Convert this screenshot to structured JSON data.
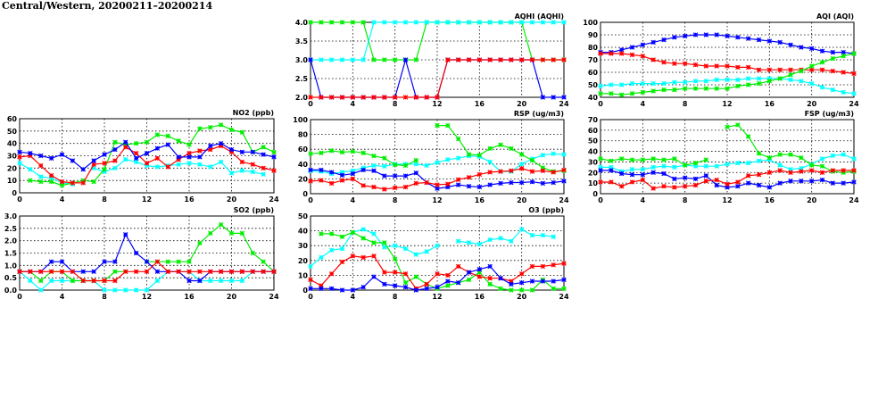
{
  "title": "Central/Western, 20200211–20200214",
  "colors": [
    "#0000ff",
    "#ff0000",
    "#00ee00",
    "#00ffff"
  ],
  "chart_data": [
    {
      "id": "aqhi",
      "type": "line",
      "title": "AQHI (AQHI)",
      "xlim": [
        0,
        24
      ],
      "ylim": [
        2,
        4
      ],
      "xticks": [
        0,
        4,
        8,
        12,
        16,
        20,
        24
      ],
      "yticks": [
        "2.0",
        "2.5",
        "3.0",
        "3.5",
        "4.0"
      ],
      "grid": true,
      "x": [
        0,
        1,
        2,
        3,
        4,
        5,
        6,
        7,
        8,
        9,
        10,
        11,
        12,
        13,
        14,
        15,
        16,
        17,
        18,
        19,
        20,
        21,
        22,
        23,
        24
      ],
      "series": [
        {
          "color": "#00ee00",
          "values": [
            4,
            4,
            4,
            4,
            4,
            4,
            3,
            3,
            3,
            3,
            3,
            4,
            4,
            4,
            4,
            4,
            4,
            4,
            4,
            4,
            4,
            3,
            3,
            3,
            3
          ]
        },
        {
          "color": "#00ffff",
          "values": [
            3,
            3,
            3,
            3,
            3,
            3,
            4,
            4,
            4,
            4,
            4,
            4,
            4,
            4,
            4,
            4,
            4,
            4,
            4,
            4,
            4,
            4,
            4,
            4,
            4
          ]
        },
        {
          "color": "#0000ff",
          "values": [
            3,
            2,
            2,
            2,
            2,
            2,
            2,
            2,
            2,
            3,
            2,
            2,
            2,
            3,
            3,
            3,
            3,
            3,
            3,
            3,
            3,
            3,
            2,
            2,
            2
          ]
        },
        {
          "color": "#ff0000",
          "values": [
            2,
            2,
            2,
            2,
            2,
            2,
            2,
            2,
            2,
            2,
            2,
            2,
            2,
            3,
            3,
            3,
            3,
            3,
            3,
            3,
            3,
            3,
            3,
            3,
            3
          ]
        }
      ]
    },
    {
      "id": "aqi",
      "type": "line",
      "title": "AQI (AQI)",
      "xlim": [
        0,
        24
      ],
      "ylim": [
        40,
        100
      ],
      "xticks": [
        0,
        4,
        8,
        12,
        16,
        20,
        24
      ],
      "yticks": [
        "40",
        "50",
        "60",
        "70",
        "80",
        "90",
        "100"
      ],
      "grid": true,
      "x": [
        0,
        1,
        2,
        3,
        4,
        5,
        6,
        7,
        8,
        9,
        10,
        11,
        12,
        13,
        14,
        15,
        16,
        17,
        18,
        19,
        20,
        21,
        22,
        23,
        24
      ],
      "series": [
        {
          "color": "#0000ff",
          "values": [
            76,
            76,
            78,
            80,
            82,
            84,
            86,
            88,
            89,
            90,
            90,
            90,
            89,
            88,
            87,
            86,
            85,
            84,
            82,
            80,
            79,
            77,
            76,
            76,
            75
          ]
        },
        {
          "color": "#ff0000",
          "values": [
            75,
            75,
            75,
            74,
            73,
            70,
            68,
            67,
            67,
            66,
            65,
            65,
            65,
            64,
            64,
            62,
            62,
            62,
            62,
            62,
            62,
            62,
            61,
            60,
            59
          ]
        },
        {
          "color": "#00ffff",
          "values": [
            49,
            50,
            50,
            51,
            51,
            51,
            51,
            52,
            52,
            53,
            53,
            54,
            54,
            54,
            55,
            55,
            55,
            55,
            54,
            53,
            51,
            48,
            46,
            44,
            43
          ]
        },
        {
          "color": "#00ee00",
          "values": [
            43,
            43,
            42,
            43,
            44,
            45,
            46,
            46,
            47,
            47,
            47,
            47,
            47,
            49,
            50,
            51,
            53,
            55,
            58,
            61,
            65,
            68,
            71,
            73,
            75
          ]
        }
      ]
    },
    {
      "id": "no2",
      "type": "line",
      "title": "NO2 (ppb)",
      "xlim": [
        0,
        24
      ],
      "ylim": [
        0,
        60
      ],
      "xticks": [
        0,
        4,
        8,
        12,
        16,
        20,
        24
      ],
      "yticks": [
        "0",
        "10",
        "20",
        "30",
        "40",
        "50",
        "60"
      ],
      "grid": true,
      "x": [
        0,
        1,
        2,
        3,
        4,
        5,
        6,
        7,
        8,
        9,
        10,
        11,
        12,
        13,
        14,
        15,
        16,
        17,
        18,
        19,
        20,
        21,
        22,
        23,
        24
      ],
      "series": [
        {
          "color": "#00ffff",
          "values": [
            24,
            19,
            13,
            12,
            8,
            7,
            null,
            20,
            17,
            20,
            27,
            25,
            22,
            21,
            22,
            23,
            24,
            23,
            21,
            25,
            16,
            18,
            17,
            15,
            null
          ]
        },
        {
          "color": "#00ee00",
          "values": [
            null,
            10,
            9,
            9,
            6,
            8,
            10,
            9,
            19,
            41,
            39,
            40,
            41,
            47,
            46,
            42,
            39,
            52,
            53,
            55,
            51,
            49,
            33,
            37,
            33
          ]
        },
        {
          "color": "#ff0000",
          "values": [
            29,
            30,
            22,
            14,
            9,
            8,
            8,
            23,
            24,
            26,
            37,
            32,
            24,
            28,
            21,
            27,
            32,
            34,
            35,
            38,
            33,
            25,
            23,
            20,
            18
          ]
        },
        {
          "color": "#0000ff",
          "values": [
            33,
            32,
            30,
            28,
            31,
            26,
            19,
            26,
            31,
            35,
            41,
            28,
            32,
            36,
            39,
            29,
            29,
            29,
            38,
            40,
            35,
            33,
            33,
            31,
            29
          ]
        }
      ]
    },
    {
      "id": "rsp",
      "type": "line",
      "title": "RSP (ug/m3)",
      "xlim": [
        0,
        24
      ],
      "ylim": [
        0,
        100
      ],
      "xticks": [
        0,
        4,
        8,
        12,
        16,
        20,
        24
      ],
      "yticks": [
        "0",
        "20",
        "40",
        "60",
        "80",
        "100"
      ],
      "grid": true,
      "x": [
        0,
        1,
        2,
        3,
        4,
        5,
        6,
        7,
        8,
        9,
        10,
        11,
        12,
        13,
        14,
        15,
        16,
        17,
        18,
        19,
        20,
        21,
        22,
        23,
        24
      ],
      "series": [
        {
          "color": "#00ffff",
          "values": [
            31,
            30,
            27,
            29,
            31,
            35,
            38,
            37,
            40,
            40,
            40,
            38,
            42,
            46,
            48,
            51,
            50,
            43,
            30,
            30,
            40,
            47,
            52,
            54,
            53
          ]
        },
        {
          "color": "#00ee00",
          "values": [
            54,
            55,
            58,
            56,
            57,
            55,
            51,
            48,
            39,
            38,
            45,
            null,
            92,
            92,
            74,
            53,
            52,
            61,
            66,
            61,
            53,
            45,
            35,
            30,
            31
          ]
        },
        {
          "color": "#0000ff",
          "values": [
            32,
            32,
            29,
            25,
            27,
            32,
            31,
            24,
            24,
            24,
            28,
            15,
            7,
            9,
            12,
            10,
            9,
            12,
            14,
            15,
            15,
            16,
            14,
            15,
            17
          ]
        },
        {
          "color": "#ff0000",
          "values": [
            17,
            18,
            14,
            18,
            20,
            11,
            9,
            6,
            8,
            9,
            14,
            15,
            12,
            13,
            19,
            22,
            26,
            29,
            30,
            31,
            34,
            30,
            31,
            29,
            32
          ]
        }
      ]
    },
    {
      "id": "fsp",
      "type": "line",
      "title": "FSP (ug/m3)",
      "xlim": [
        0,
        24
      ],
      "ylim": [
        0,
        70
      ],
      "xticks": [
        0,
        4,
        8,
        12,
        16,
        20,
        24
      ],
      "yticks": [
        "0",
        "10",
        "20",
        "30",
        "40",
        "50",
        "60",
        "70"
      ],
      "grid": true,
      "x": [
        0,
        1,
        2,
        3,
        4,
        5,
        6,
        7,
        8,
        9,
        10,
        11,
        12,
        13,
        14,
        15,
        16,
        17,
        18,
        19,
        20,
        21,
        22,
        23,
        24
      ],
      "series": [
        {
          "color": "#00ffff",
          "values": [
            25,
            25,
            21,
            23,
            23,
            25,
            26,
            25,
            27,
            26,
            26,
            26,
            28,
            29,
            29,
            31,
            32,
            27,
            23,
            24,
            28,
            33,
            36,
            37,
            33
          ]
        },
        {
          "color": "#00ee00",
          "values": [
            33,
            31,
            33,
            32,
            32,
            33,
            32,
            33,
            27,
            29,
            32,
            null,
            63,
            65,
            54,
            38,
            34,
            37,
            37,
            34,
            27,
            26,
            21,
            20,
            21
          ]
        },
        {
          "color": "#0000ff",
          "values": [
            22,
            22,
            19,
            18,
            18,
            20,
            19,
            14,
            15,
            14,
            17,
            8,
            6,
            7,
            10,
            8,
            6,
            10,
            12,
            12,
            12,
            13,
            10,
            10,
            11
          ]
        },
        {
          "color": "#ff0000",
          "values": [
            11,
            11,
            7,
            11,
            13,
            5,
            7,
            6,
            7,
            8,
            12,
            13,
            9,
            11,
            17,
            18,
            20,
            22,
            20,
            21,
            22,
            20,
            22,
            22,
            22
          ]
        }
      ]
    },
    {
      "id": "so2",
      "type": "line",
      "title": "SO2 (ppb)",
      "xlim": [
        0,
        24
      ],
      "ylim": [
        0,
        3
      ],
      "xticks": [
        0,
        4,
        8,
        12,
        16,
        20,
        24
      ],
      "yticks": [
        "0.0",
        "0.5",
        "1.0",
        "1.5",
        "2.0",
        "2.5",
        "3.0"
      ],
      "grid": true,
      "x": [
        0,
        1,
        2,
        3,
        4,
        5,
        6,
        7,
        8,
        9,
        10,
        11,
        12,
        13,
        14,
        15,
        16,
        17,
        18,
        19,
        20,
        21,
        22,
        23,
        24
      ],
      "series": [
        {
          "color": "#00ffff",
          "values": [
            0.75,
            0.38,
            0,
            0.38,
            0.38,
            0.38,
            0.38,
            0.38,
            0,
            0,
            0,
            0,
            0,
            0.38,
            0.75,
            0.75,
            0.75,
            0.38,
            0.38,
            0.38,
            0.38,
            0.38,
            0.75,
            0.75,
            0.75
          ]
        },
        {
          "color": "#00ee00",
          "values": [
            0.75,
            0.75,
            0.38,
            0.75,
            0.75,
            0.38,
            0.38,
            0.38,
            0.38,
            0.75,
            0.75,
            null,
            1.15,
            1.15,
            1.15,
            1.15,
            1.15,
            1.9,
            2.3,
            2.65,
            2.3,
            2.3,
            1.5,
            1.15,
            0.75
          ]
        },
        {
          "color": "#0000ff",
          "values": [
            0.75,
            0.75,
            0.75,
            1.15,
            1.15,
            0.75,
            0.75,
            0.75,
            1.15,
            1.15,
            2.25,
            1.5,
            1.15,
            0.75,
            0.75,
            0.75,
            0.38,
            0.38,
            0.75,
            0.75,
            0.75,
            0.75,
            0.75,
            0.75,
            0.75
          ]
        },
        {
          "color": "#ff0000",
          "values": [
            0.75,
            0.75,
            0.75,
            0.75,
            0.75,
            0.75,
            0.38,
            0.38,
            0.38,
            0.38,
            0.75,
            0.75,
            0.75,
            1.15,
            0.75,
            0.75,
            0.75,
            0.75,
            0.75,
            0.75,
            0.75,
            0.75,
            0.75,
            0.75,
            0.75
          ]
        }
      ]
    },
    {
      "id": "o3",
      "type": "line",
      "title": "O3 (ppb)",
      "xlim": [
        0,
        24
      ],
      "ylim": [
        0,
        50
      ],
      "xticks": [
        0,
        4,
        8,
        12,
        16,
        20,
        24
      ],
      "yticks": [
        "0",
        "10",
        "20",
        "30",
        "40",
        "50"
      ],
      "grid": true,
      "x": [
        0,
        1,
        2,
        3,
        4,
        5,
        6,
        7,
        8,
        9,
        10,
        11,
        12,
        13,
        14,
        15,
        16,
        17,
        18,
        19,
        20,
        21,
        22,
        23,
        24
      ],
      "series": [
        {
          "color": "#00ffff",
          "values": [
            16,
            22,
            27,
            28,
            39,
            41,
            38,
            29,
            30,
            28,
            24,
            26,
            30,
            null,
            33,
            32,
            31,
            34,
            35,
            33,
            41,
            37,
            37,
            36,
            null
          ]
        },
        {
          "color": "#00ee00",
          "values": [
            null,
            38,
            38,
            36,
            39,
            35,
            32,
            32,
            21,
            5,
            9,
            4,
            1,
            3,
            5,
            7,
            12,
            4,
            1,
            0,
            0,
            0,
            7,
            1,
            1
          ]
        },
        {
          "color": "#ff0000",
          "values": [
            7,
            3,
            11,
            19,
            23,
            22,
            23,
            12,
            12,
            11,
            1,
            4,
            11,
            10,
            16,
            12,
            9,
            8,
            8,
            6,
            11,
            16,
            16,
            17,
            18
          ]
        },
        {
          "color": "#0000ff",
          "values": [
            1,
            1,
            1,
            0,
            0,
            2,
            9,
            4,
            3,
            2,
            0,
            1,
            2,
            6,
            5,
            12,
            14,
            16,
            8,
            4,
            5,
            6,
            6,
            6,
            7
          ]
        }
      ]
    }
  ]
}
